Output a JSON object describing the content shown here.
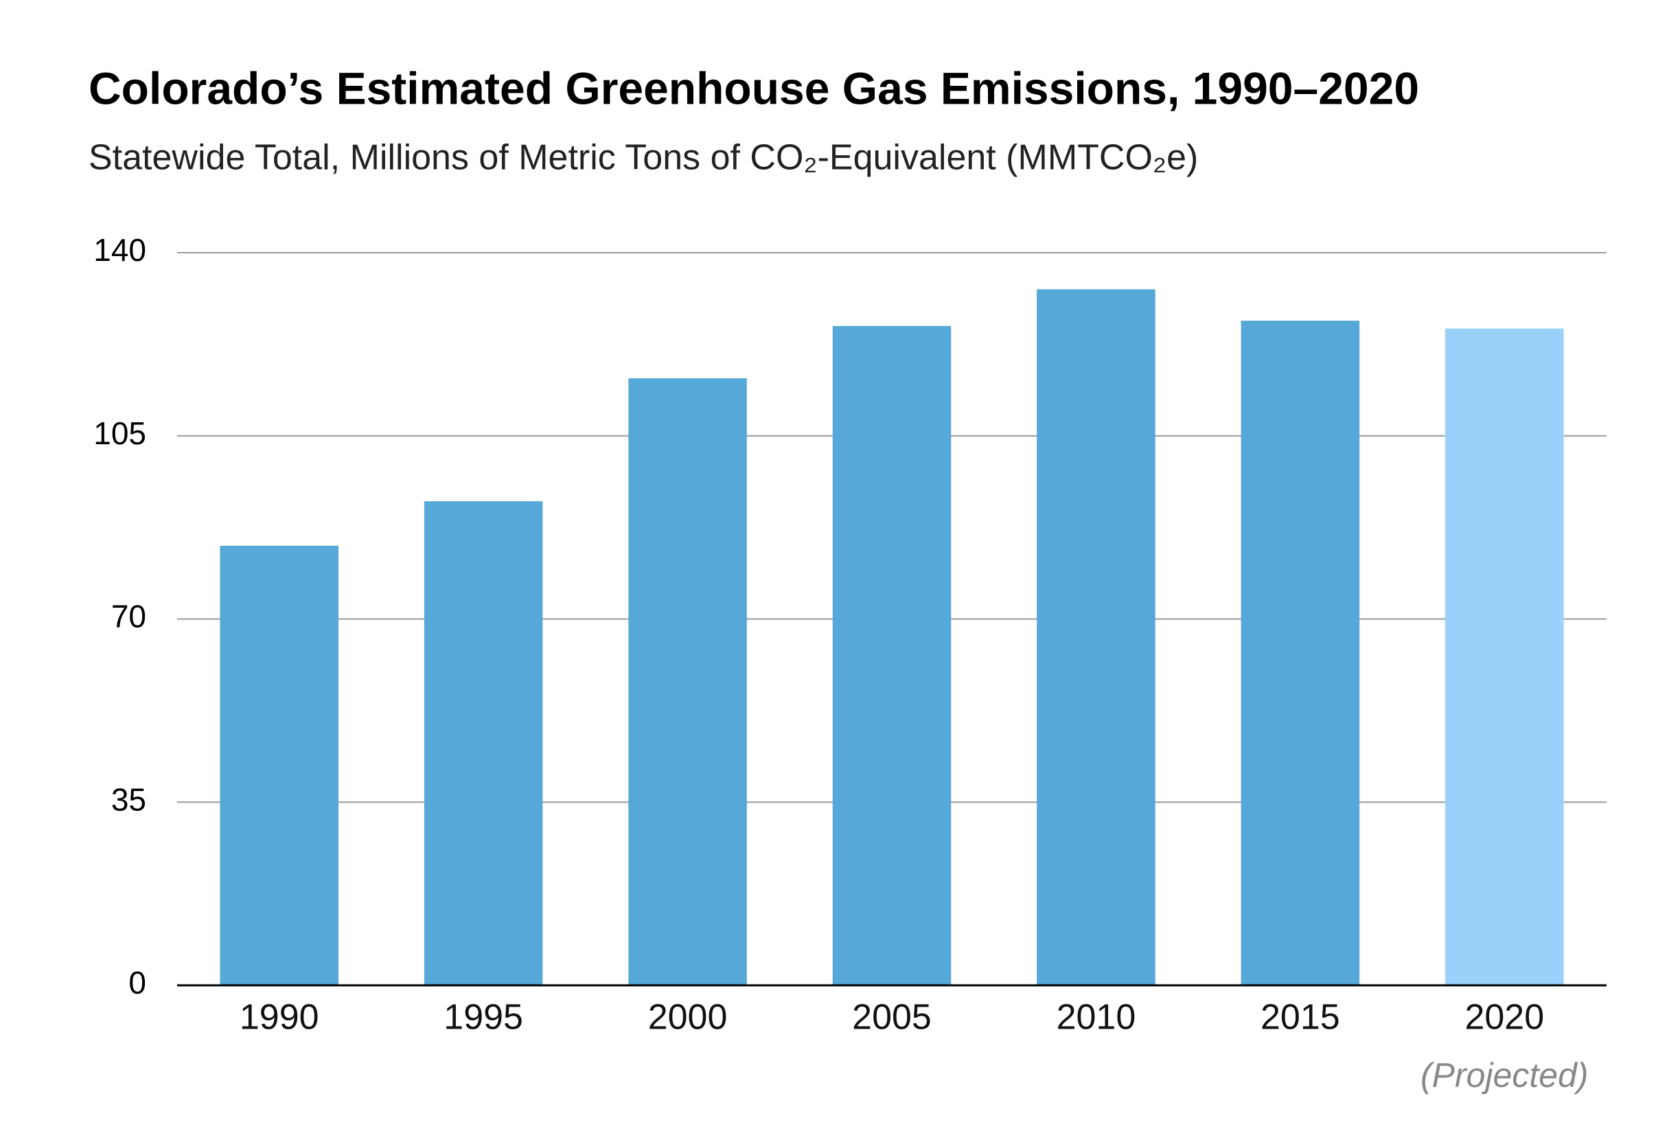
{
  "chart_data": {
    "type": "bar",
    "title": "Colorado’s Estimated Greenhouse Gas Emissions, 1990–2020",
    "subtitle": "Statewide Total, Millions of Metric Tons of CO₂-Equivalent (MMTCO₂e)",
    "categories": [
      "1990",
      "1995",
      "2000",
      "2005",
      "2010",
      "2015",
      "2020"
    ],
    "values": [
      84,
      92.5,
      116,
      126,
      133,
      127,
      125.5
    ],
    "colors": [
      "#55a8d7",
      "#55a8d7",
      "#55a8d7",
      "#55a8d7",
      "#55a8d7",
      "#55a8d7",
      "#99d1fb"
    ],
    "annotation": "(Projected)",
    "ylim": [
      0,
      140
    ],
    "yticks": [
      0,
      35,
      70,
      105,
      140
    ],
    "grid": true
  }
}
